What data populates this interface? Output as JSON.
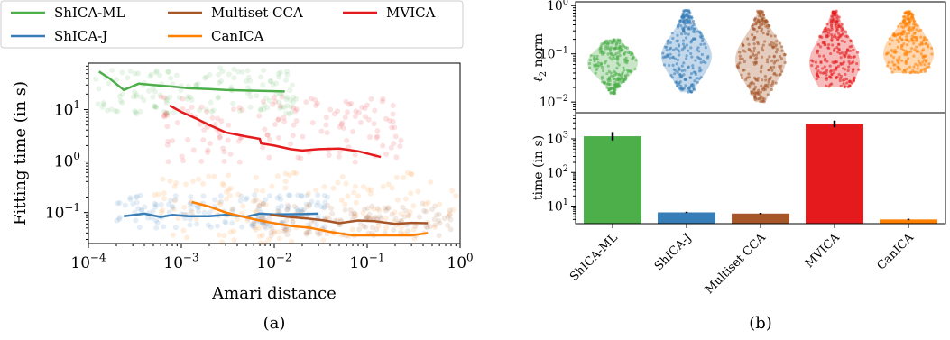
{
  "colors": {
    "ShICA-ML": "#4daf4a",
    "ShICA-J": "#377eb8",
    "Multiset CCA": "#a65628",
    "MVICA": "#e41a1c",
    "CanICA": "#ff7f00"
  },
  "legend": {
    "placement": "top",
    "entries": [
      "ShICA-ML",
      "ShICA-J",
      "Multiset CCA",
      "CanICA",
      "MVICA"
    ]
  },
  "captions": {
    "a": "(a)",
    "b": "(b)"
  },
  "chart_data": [
    {
      "panel": "a",
      "type": "line",
      "xlabel": "Amari distance",
      "ylabel": "Fitting time (in s)",
      "xscale": "log",
      "yscale": "log",
      "xlim": [
        0.0001,
        1
      ],
      "ylim": [
        0.025,
        80
      ],
      "xticks": [
        {
          "v": 0.0001,
          "b": "10",
          "e": "−4"
        },
        {
          "v": 0.001,
          "b": "10",
          "e": "−3"
        },
        {
          "v": 0.01,
          "b": "10",
          "e": "−2"
        },
        {
          "v": 0.1,
          "b": "10",
          "e": "−1"
        },
        {
          "v": 1,
          "b": "10",
          "e": "0"
        }
      ],
      "yticks": [
        {
          "v": 0.1,
          "b": "10",
          "e": "−1"
        },
        {
          "v": 1,
          "b": "10",
          "e": "0"
        },
        {
          "v": 10,
          "b": "10",
          "e": "1"
        }
      ],
      "grid": false,
      "series": [
        {
          "name": "ShICA-ML",
          "x": [
            0.00013,
            0.00017,
            0.00024,
            0.00035,
            0.0005,
            0.0008,
            0.0012,
            0.002,
            0.003,
            0.005,
            0.008,
            0.013
          ],
          "y": [
            55,
            40,
            24,
            32,
            30,
            28,
            26,
            25,
            24,
            23.5,
            23,
            22.5
          ]
        },
        {
          "name": "MVICA",
          "x": [
            0.00075,
            0.001,
            0.0015,
            0.002,
            0.003,
            0.005,
            0.007,
            0.0072,
            0.01,
            0.015,
            0.02,
            0.03,
            0.05,
            0.08,
            0.14
          ],
          "y": [
            12,
            9,
            6.5,
            5,
            3.6,
            3,
            2.7,
            2.2,
            2.0,
            1.7,
            1.6,
            1.7,
            1.75,
            1.55,
            1.2
          ]
        },
        {
          "name": "ShICA-J",
          "x": [
            0.00024,
            0.0004,
            0.0006,
            0.0008,
            0.0012,
            0.002,
            0.003,
            0.005,
            0.007,
            0.01,
            0.02,
            0.03
          ],
          "y": [
            0.085,
            0.095,
            0.082,
            0.09,
            0.085,
            0.085,
            0.09,
            0.083,
            0.095,
            0.092,
            0.093,
            0.095
          ]
        },
        {
          "name": "Multiset CCA",
          "x": [
            0.009,
            0.015,
            0.025,
            0.035,
            0.05,
            0.08,
            0.12,
            0.2,
            0.3,
            0.45
          ],
          "y": [
            0.09,
            0.082,
            0.075,
            0.07,
            0.062,
            0.07,
            0.068,
            0.06,
            0.063,
            0.062
          ]
        },
        {
          "name": "CanICA",
          "x": [
            0.0013,
            0.002,
            0.003,
            0.005,
            0.007,
            0.01,
            0.015,
            0.025,
            0.04,
            0.07,
            0.12,
            0.2,
            0.3,
            0.45
          ],
          "y": [
            0.16,
            0.13,
            0.1,
            0.08,
            0.07,
            0.062,
            0.055,
            0.05,
            0.042,
            0.036,
            0.036,
            0.036,
            0.036,
            0.04
          ]
        }
      ],
      "scatter_clouds": [
        {
          "name": "ShICA-ML",
          "x_range": [
            0.00012,
            0.018
          ],
          "y_range": [
            8,
            65
          ]
        },
        {
          "name": "MVICA",
          "x_range": [
            0.0006,
            0.25
          ],
          "y_range": [
            0.9,
            18
          ]
        },
        {
          "name": "ShICA-J",
          "x_range": [
            0.0002,
            0.04
          ],
          "y_range": [
            0.05,
            0.22
          ]
        },
        {
          "name": "Multiset CCA",
          "x_range": [
            0.006,
            0.8
          ],
          "y_range": [
            0.035,
            0.15
          ]
        },
        {
          "name": "CanICA",
          "x_range": [
            0.0005,
            0.95
          ],
          "y_range": [
            0.025,
            0.6
          ]
        }
      ]
    },
    {
      "panel": "b-top",
      "type": "violin",
      "ylabel": "ℓ2 norm",
      "yscale": "log",
      "ylim": [
        0.006,
        1.2
      ],
      "yticks": [
        {
          "v": 0.01,
          "b": "10",
          "e": "−2"
        },
        {
          "v": 0.1,
          "b": "10",
          "e": "−1"
        },
        {
          "v": 1,
          "b": "10",
          "e": "0"
        }
      ],
      "categories": [
        "ShICA-ML",
        "ShICA-J",
        "Multiset CCA",
        "MVICA",
        "CanICA"
      ],
      "distributions": [
        {
          "name": "ShICA-ML",
          "min": 0.015,
          "max": 0.2,
          "median": 0.065
        },
        {
          "name": "ShICA-J",
          "min": 0.016,
          "max": 0.8,
          "median": 0.09
        },
        {
          "name": "Multiset CCA",
          "min": 0.01,
          "max": 0.8,
          "median": 0.075
        },
        {
          "name": "MVICA",
          "min": 0.02,
          "max": 0.8,
          "median": 0.065
        },
        {
          "name": "CanICA",
          "min": 0.04,
          "max": 0.8,
          "median": 0.1
        }
      ]
    },
    {
      "panel": "b-bottom",
      "type": "bar",
      "ylabel": "time (in s)",
      "yscale": "log",
      "ylim": [
        3,
        6000
      ],
      "yticks": [
        {
          "v": 10,
          "b": "10",
          "e": "1"
        },
        {
          "v": 100,
          "b": "10",
          "e": "2"
        },
        {
          "v": 1000,
          "b": "10",
          "e": "3"
        }
      ],
      "categories": [
        "ShICA-ML",
        "ShICA-J",
        "Multiset CCA",
        "MVICA",
        "CanICA"
      ],
      "values": [
        1200,
        6.5,
        6,
        2800,
        4
      ],
      "errors": [
        [
          900,
          1600
        ],
        [
          6.2,
          6.8
        ],
        [
          5.7,
          6.3
        ],
        [
          2200,
          3500
        ],
        [
          3.8,
          4.2
        ]
      ]
    }
  ]
}
